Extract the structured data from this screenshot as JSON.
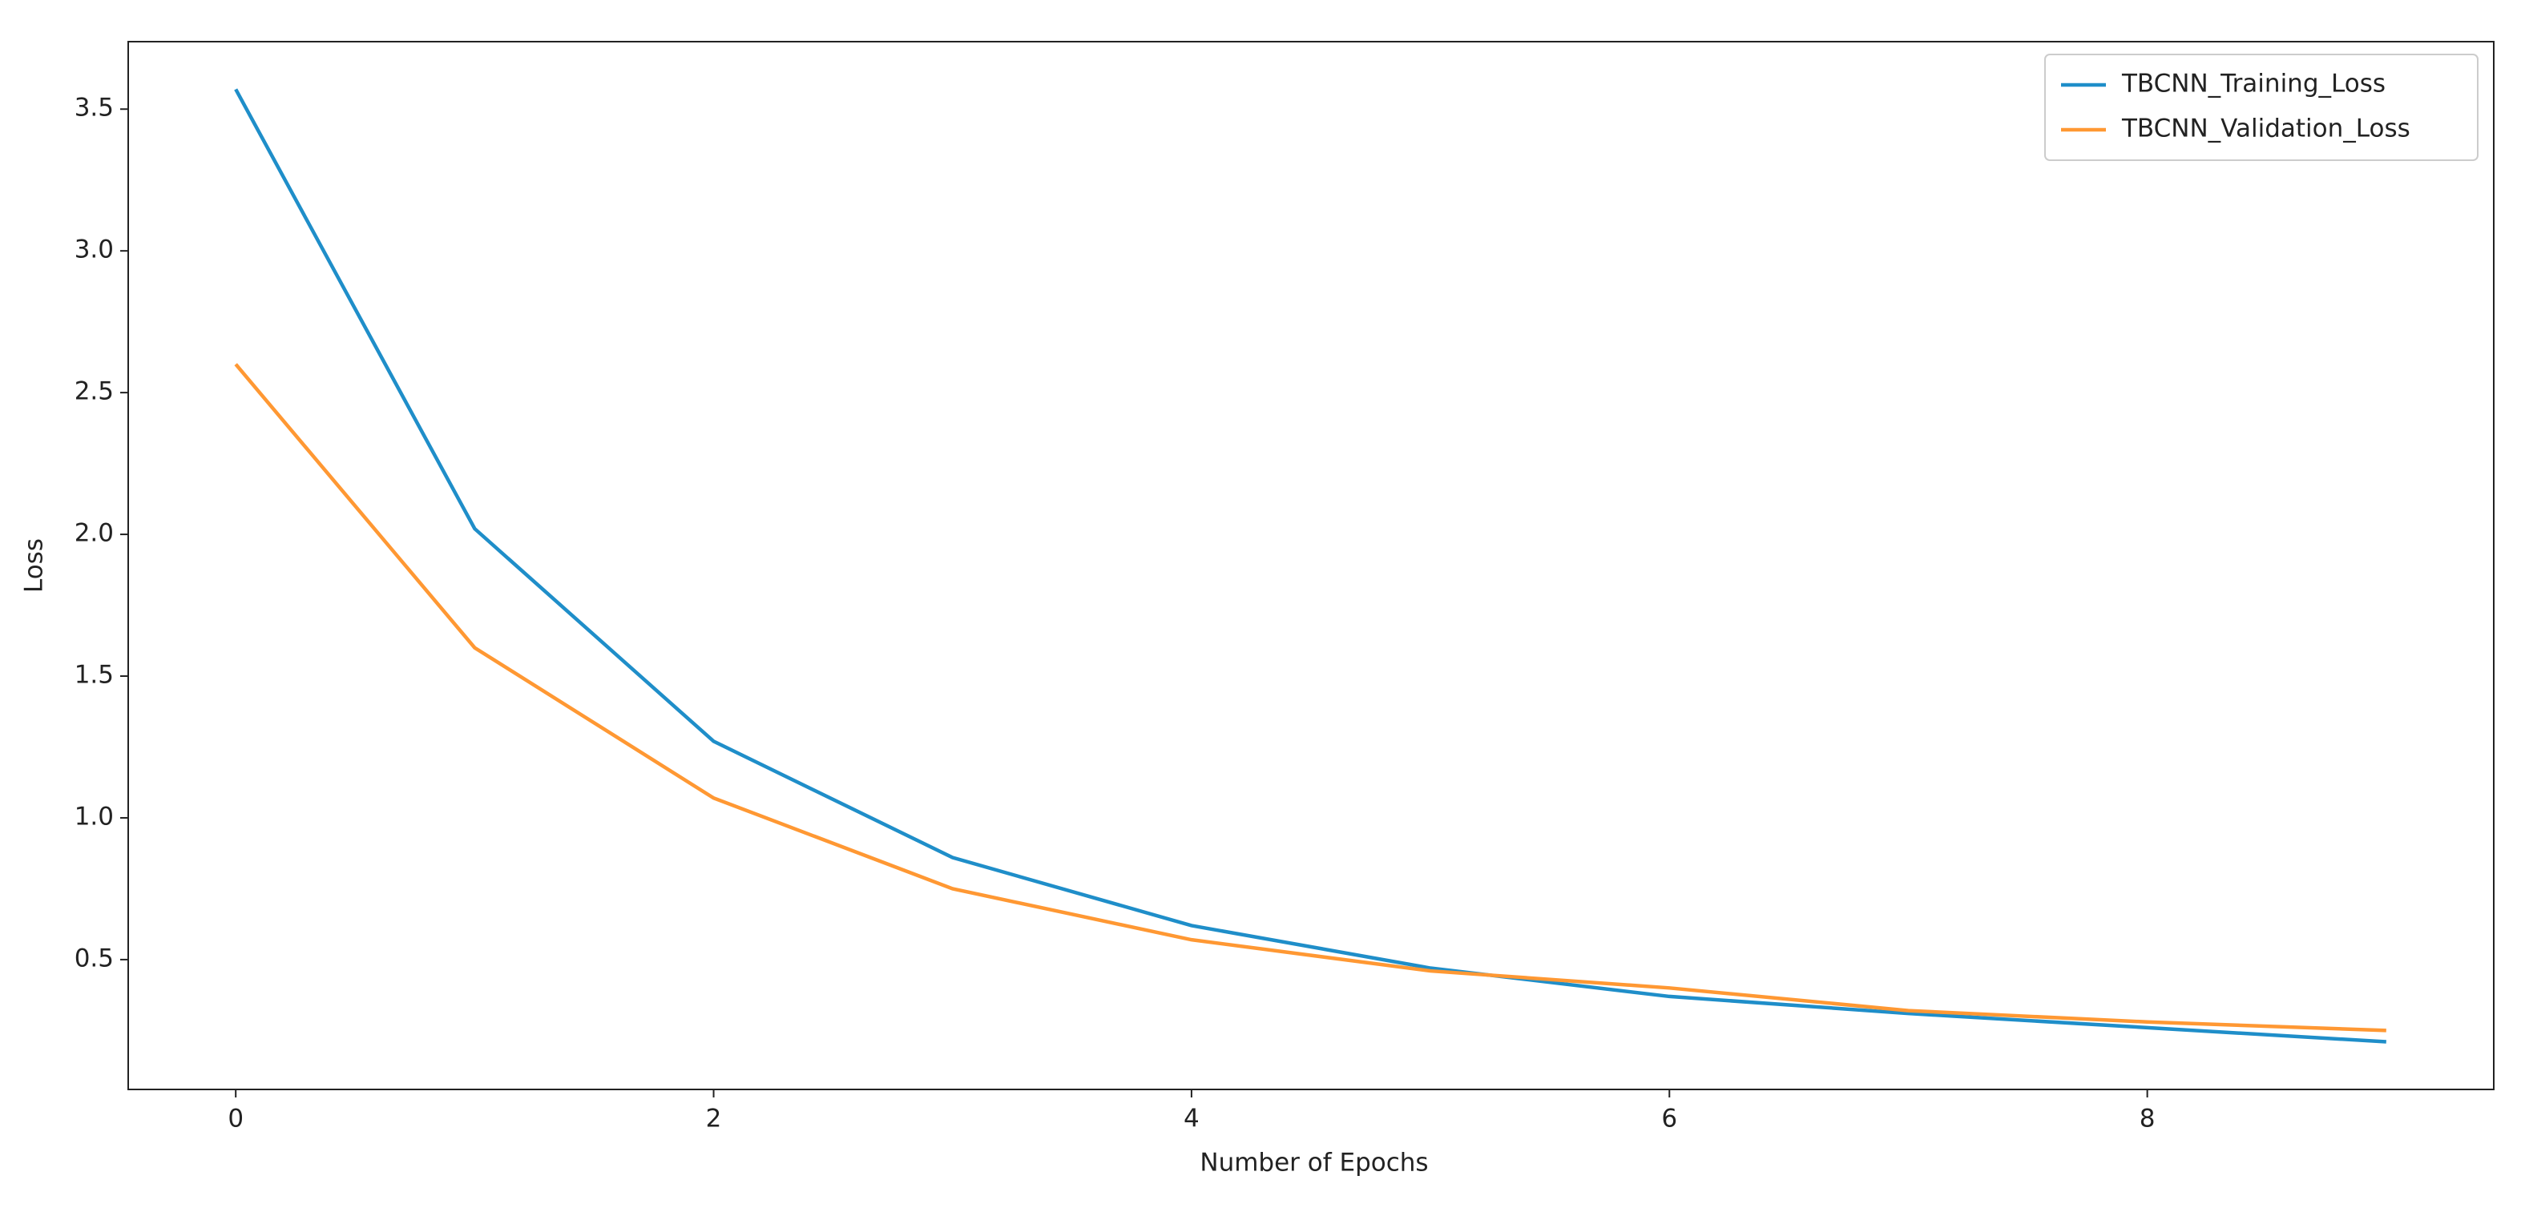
{
  "chart_data": {
    "type": "line",
    "x": [
      0,
      1,
      2,
      3,
      4,
      5,
      6,
      7,
      8,
      9
    ],
    "series": [
      {
        "name": "TBCNN_Training_Loss",
        "color": "#1f8ec9",
        "values": [
          3.57,
          2.02,
          1.27,
          0.86,
          0.62,
          0.47,
          0.37,
          0.31,
          0.26,
          0.21
        ]
      },
      {
        "name": "TBCNN_Validation_Loss",
        "color": "#ff9833",
        "values": [
          2.6,
          1.6,
          1.07,
          0.75,
          0.57,
          0.46,
          0.4,
          0.32,
          0.28,
          0.25
        ]
      }
    ],
    "xlabel": "Number of Epochs",
    "ylabel": "Loss",
    "xlim": [
      -0.45,
      9.45
    ],
    "xticks": [
      0,
      2,
      4,
      6,
      8
    ],
    "ylim": [
      0.042,
      3.738
    ],
    "yticks": [
      0.5,
      {
        "value": 1,
        "label": "1.0"
      },
      1.5,
      {
        "value": 2,
        "label": "2.0"
      },
      2.5,
      {
        "value": 3,
        "label": "3.0"
      },
      3.5
    ],
    "grid": false,
    "legend": "upper right"
  }
}
